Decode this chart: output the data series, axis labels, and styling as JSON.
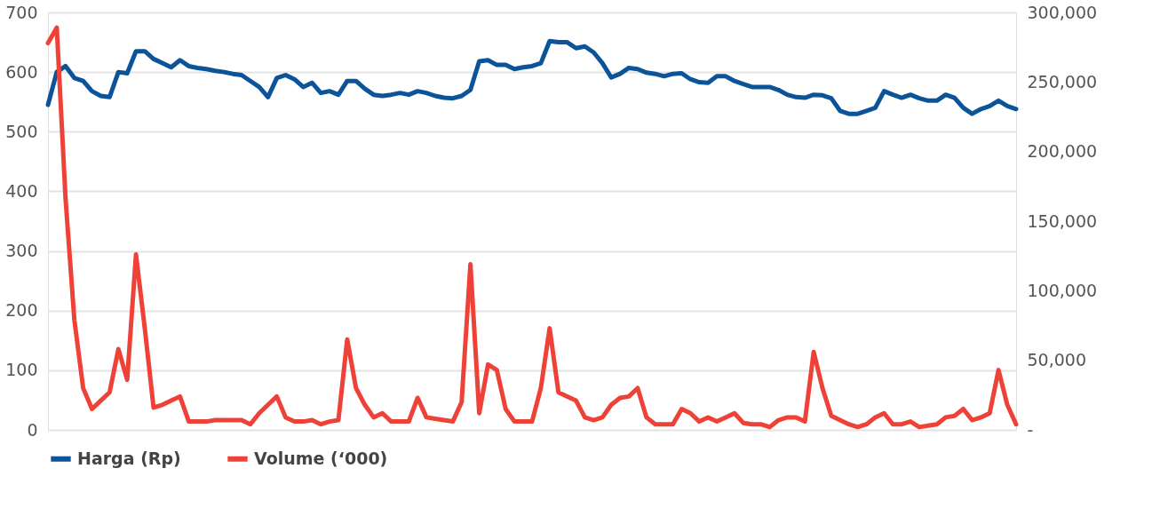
{
  "chart_data": {
    "type": "line",
    "categories": [
      null,
      null,
      null,
      null,
      null,
      null,
      null,
      null,
      null,
      null,
      null,
      null,
      null,
      null,
      null,
      null,
      null,
      null,
      null,
      null,
      null,
      null,
      null,
      null,
      null,
      null,
      null,
      null,
      null,
      null,
      null,
      null,
      null,
      null,
      null,
      null,
      null,
      null,
      null,
      null,
      null,
      null,
      null,
      null,
      null,
      null,
      null,
      null,
      null,
      null,
      null,
      null,
      null,
      null,
      null,
      null,
      null,
      null,
      null,
      null,
      null,
      null,
      null,
      null,
      null,
      null,
      null,
      null,
      null,
      null,
      null,
      null,
      null,
      null,
      null,
      null,
      null,
      null,
      null,
      null,
      null,
      null,
      null,
      null,
      null,
      null,
      null,
      null,
      null,
      null,
      null,
      null,
      null,
      null,
      null,
      null,
      null,
      null,
      null,
      null,
      null,
      null,
      null,
      null,
      null,
      null,
      null,
      null,
      null,
      null,
      null
    ],
    "series": [
      {
        "name": "Harga (Rp)",
        "color": "#0b5499",
        "values": [
          545,
          600,
          610,
          590,
          585,
          568,
          560,
          558,
          600,
          598,
          635,
          635,
          622,
          615,
          608,
          620,
          610,
          607,
          605,
          602,
          600,
          597,
          595,
          585,
          575,
          558,
          590,
          595,
          588,
          575,
          582,
          565,
          568,
          562,
          585,
          585,
          572,
          562,
          560,
          562,
          565,
          562,
          568,
          565,
          560,
          557,
          556,
          560,
          570,
          618,
          620,
          612,
          612,
          605,
          608,
          610,
          615,
          652,
          650,
          650,
          640,
          643,
          633,
          615,
          591,
          597,
          607,
          605,
          599,
          597,
          593,
          597,
          598,
          588,
          583,
          582,
          593,
          593,
          585,
          580,
          575,
          575,
          575,
          570,
          562,
          558,
          557,
          562,
          561,
          556,
          535,
          530,
          530,
          535,
          540,
          568,
          562,
          557,
          562,
          556,
          552,
          552,
          562,
          557,
          540,
          530,
          538,
          543,
          552,
          543,
          538
        ]
      },
      {
        "name": "Volume (‘000)",
        "color": "#ee4137",
        "axis": "y2",
        "values": [
          278000,
          289000,
          166000,
          79000,
          30000,
          15000,
          21000,
          27000,
          58000,
          36000,
          126000,
          73000,
          16000,
          18000,
          21000,
          24000,
          6000,
          6000,
          6000,
          7000,
          7000,
          7000,
          7000,
          4000,
          12000,
          18000,
          24000,
          9000,
          6000,
          6000,
          7000,
          4000,
          6000,
          7000,
          65000,
          30000,
          18000,
          9000,
          12000,
          6000,
          6000,
          6000,
          23000,
          9000,
          8000,
          7000,
          6000,
          20000,
          119000,
          12000,
          47000,
          43000,
          15000,
          6000,
          6000,
          6000,
          30000,
          73000,
          27000,
          24000,
          21000,
          9000,
          7000,
          9000,
          18000,
          23000,
          24000,
          30000,
          9000,
          4000,
          4000,
          4000,
          15000,
          12000,
          6000,
          9000,
          6000,
          9000,
          12000,
          5000,
          4000,
          4000,
          2000,
          7000,
          9000,
          9000,
          6000,
          56000,
          30000,
          10000,
          7000,
          4000,
          2000,
          4000,
          9000,
          12000,
          4000,
          4000,
          6000,
          2000,
          3000,
          4000,
          9000,
          10000,
          15000,
          7000,
          9000,
          12000,
          43000,
          18000,
          4000
        ]
      }
    ],
    "ylim": [
      0,
      700
    ],
    "yticks": [
      0,
      100,
      200,
      300,
      400,
      500,
      600,
      700
    ],
    "y2lim": [
      0,
      300000
    ],
    "y2ticks": [
      {
        "value": 0,
        "label": "-"
      },
      {
        "value": 50000,
        "label": "50,000"
      },
      {
        "value": 100000,
        "label": "100,000"
      },
      {
        "value": 150000,
        "label": "150,000"
      },
      {
        "value": 200000,
        "label": "200,000"
      },
      {
        "value": 250000,
        "label": "250,000"
      },
      {
        "value": 300000,
        "label": "300,000"
      }
    ],
    "tick_labels": "y",
    "grid": "y",
    "legend": "bottom",
    "marker": "none",
    "line_style": "solid"
  }
}
